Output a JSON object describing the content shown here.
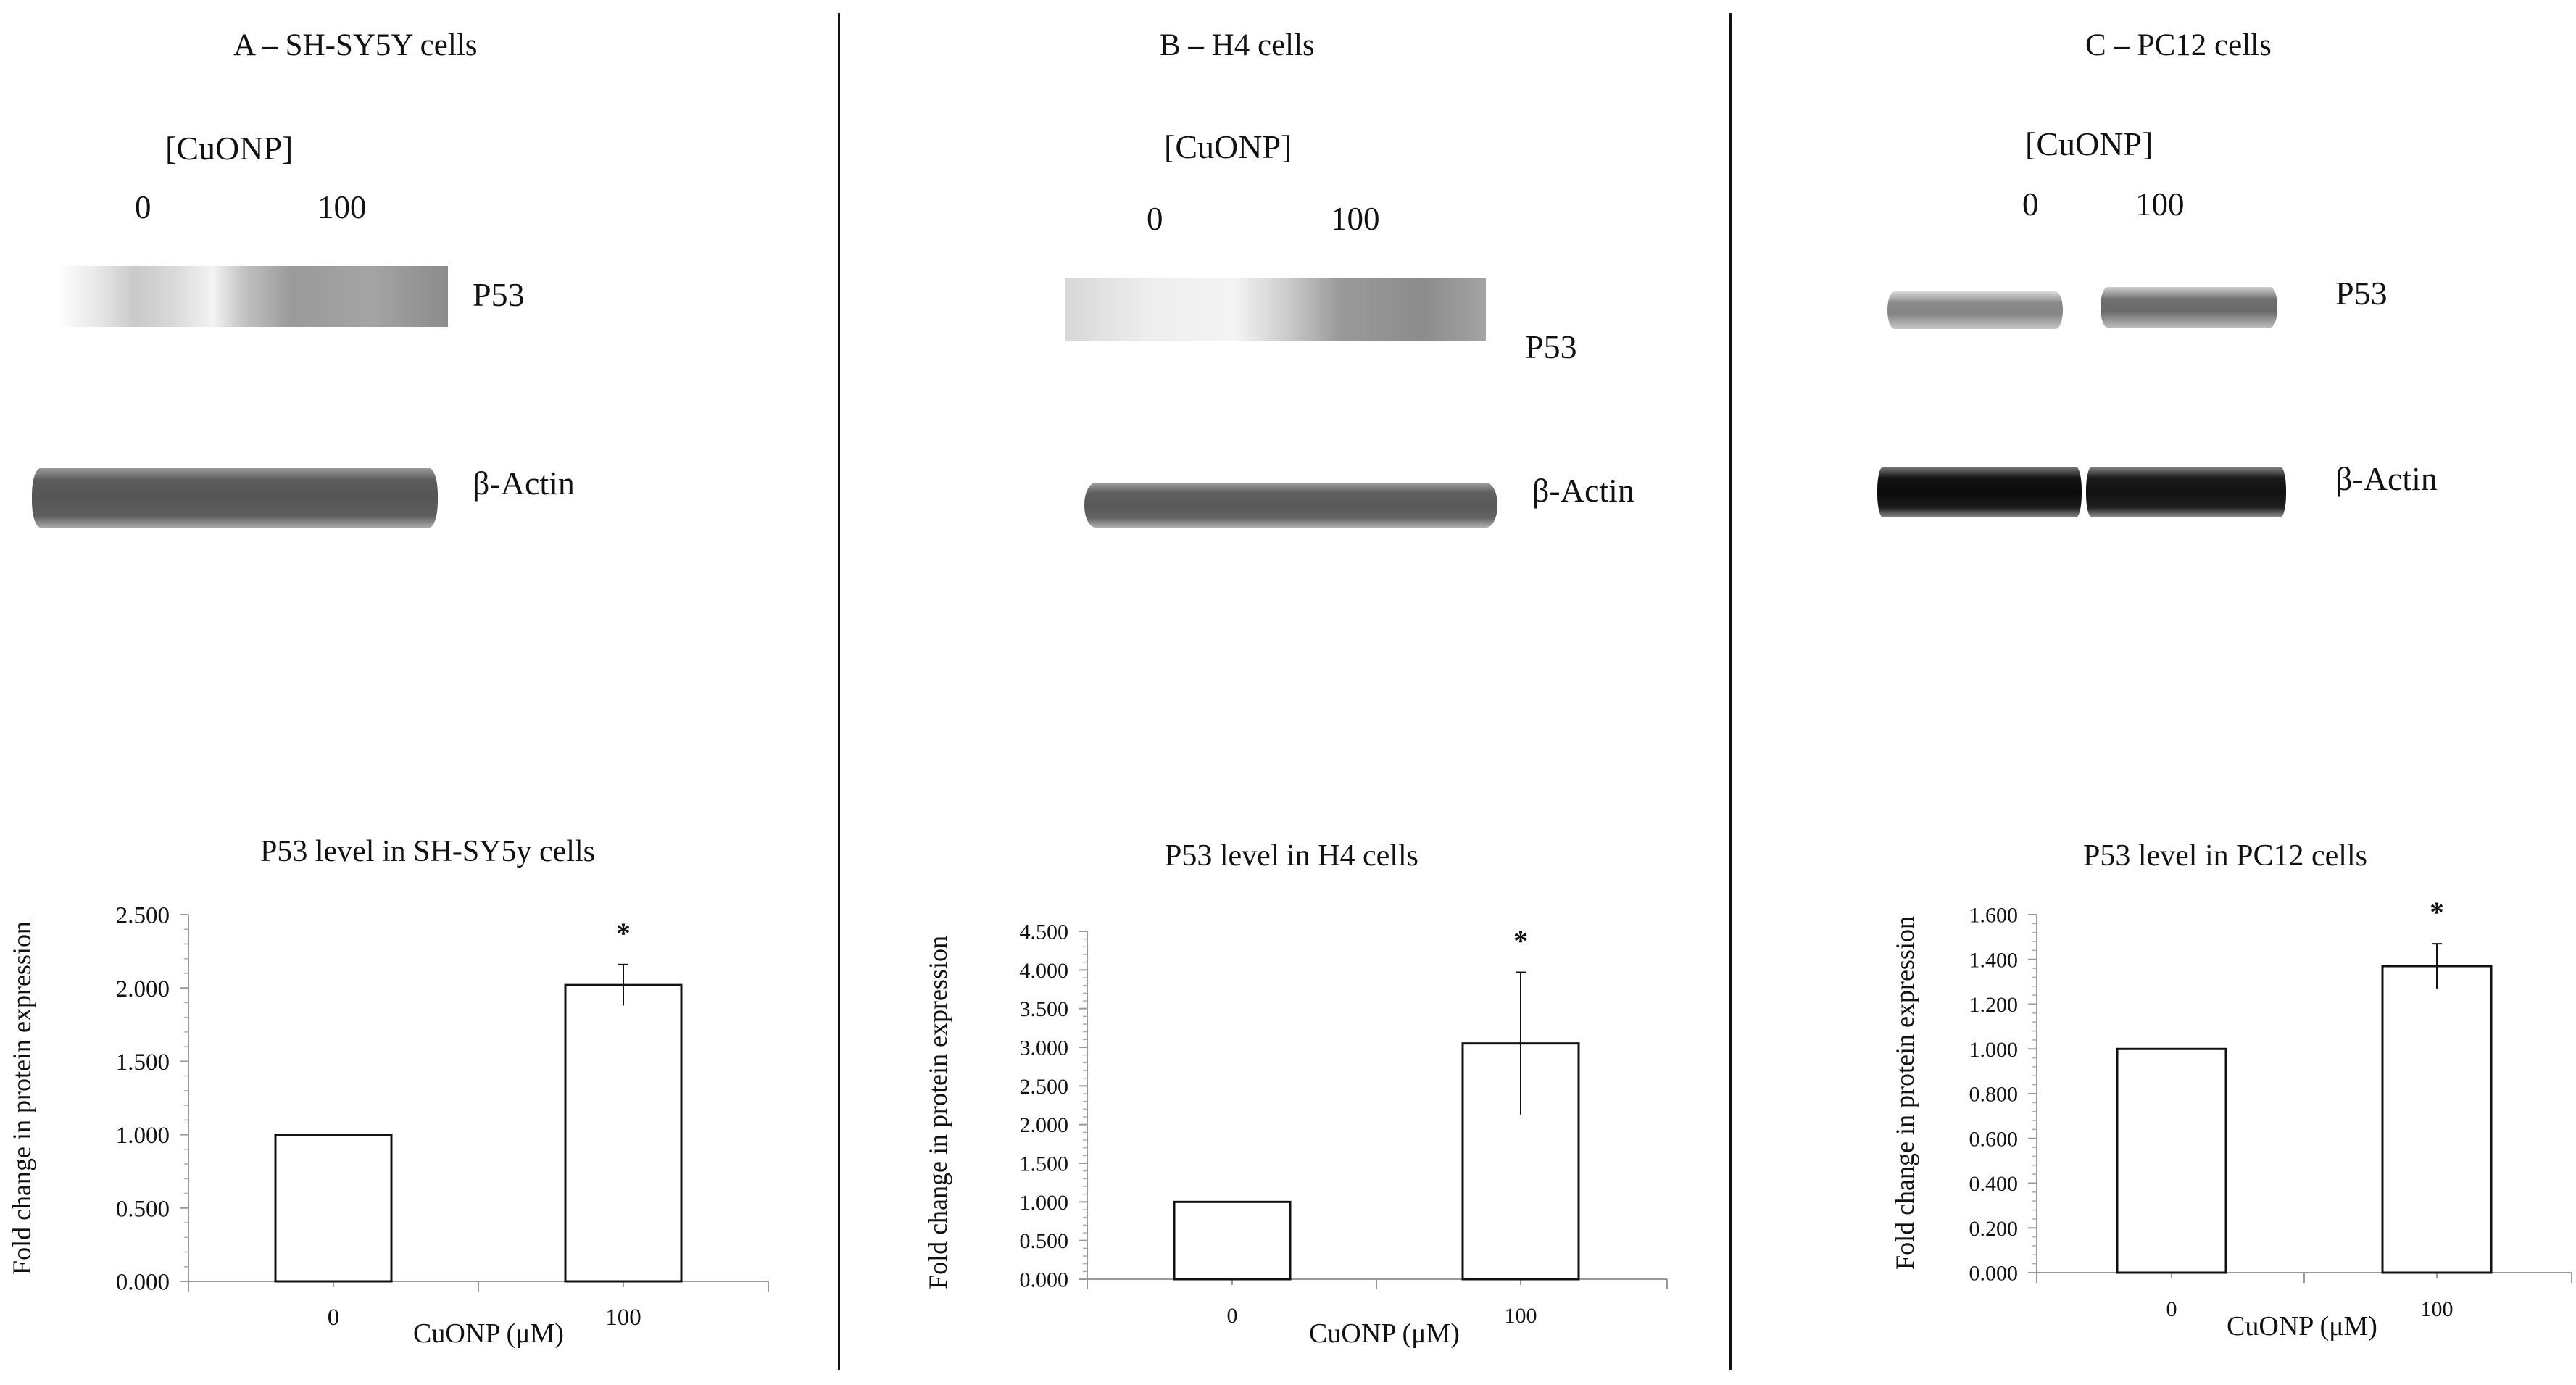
{
  "panels": [
    {
      "title": "A – SH-SY5Y cells",
      "blot": {
        "treatment_label": "[CuONP]",
        "lanes": [
          "0",
          "100"
        ],
        "bands": [
          "P53",
          "β-Actin"
        ]
      },
      "chart": {
        "title": "P53 level in SH-SY5y cells",
        "ylabel": "Fold change in protein expression",
        "xlabel": "CuONP (μM)",
        "y_ticks": [
          "0.000",
          "0.500",
          "1.000",
          "1.500",
          "2.000",
          "2.500"
        ]
      }
    },
    {
      "title": "B – H4 cells",
      "blot": {
        "treatment_label": "[CuONP]",
        "lanes": [
          "0",
          "100"
        ],
        "bands": [
          "P53",
          "β-Actin"
        ]
      },
      "chart": {
        "title": "P53 level in H4  cells",
        "ylabel": "Fold change in protein expression",
        "xlabel": "CuONP (μM)",
        "y_ticks": [
          "0.000",
          "0.500",
          "1.000",
          "1.500",
          "2.000",
          "2.500",
          "3.000",
          "3.500",
          "4.000",
          "4.500"
        ]
      }
    },
    {
      "title": "C – PC12 cells",
      "blot": {
        "treatment_label": "[CuONP]",
        "lanes": [
          "0",
          "100"
        ],
        "bands": [
          "P53",
          "β-Actin"
        ]
      },
      "chart": {
        "title": "P53 level in PC12 cells",
        "ylabel": "Fold change in protein expression",
        "xlabel": "CuONP (μM)",
        "y_ticks": [
          "0.000",
          "0.200",
          "0.400",
          "0.600",
          "0.800",
          "1.000",
          "1.200",
          "1.400",
          "1.600"
        ]
      }
    }
  ],
  "chart_data": [
    {
      "type": "bar",
      "title": "P53 level in SH-SY5y cells",
      "xlabel": "CuONP (μM)",
      "ylabel": "Fold change in protein expression",
      "categories": [
        "0",
        "100"
      ],
      "values": [
        1.0,
        2.02
      ],
      "error": [
        0,
        0.14
      ],
      "significance": [
        "",
        "*"
      ],
      "ylim": [
        0,
        2.5
      ],
      "bar_fill": "#ffffff",
      "bar_stroke": "#111111"
    },
    {
      "type": "bar",
      "title": "P53 level in H4  cells",
      "xlabel": "CuONP (μM)",
      "ylabel": "Fold change in protein expression",
      "categories": [
        "0",
        "100"
      ],
      "values": [
        1.0,
        3.05
      ],
      "error": [
        0,
        0.92
      ],
      "significance": [
        "",
        "*"
      ],
      "ylim": [
        0,
        4.5
      ],
      "bar_fill": "#ffffff",
      "bar_stroke": "#111111"
    },
    {
      "type": "bar",
      "title": "P53 level in PC12 cells",
      "xlabel": "CuONP (μM)",
      "ylabel": "Fold change in protein expression",
      "categories": [
        "0",
        "100"
      ],
      "values": [
        1.0,
        1.37
      ],
      "error": [
        0,
        0.1
      ],
      "significance": [
        "",
        "*"
      ],
      "ylim": [
        0,
        1.6
      ],
      "bar_fill": "#ffffff",
      "bar_stroke": "#111111"
    }
  ]
}
